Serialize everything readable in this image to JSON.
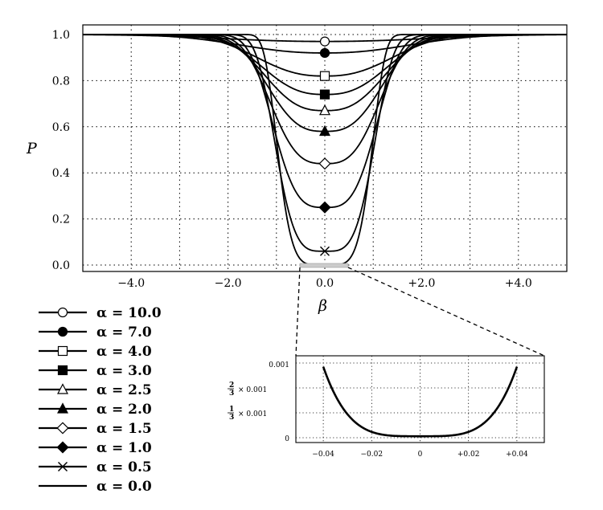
{
  "chart_data": [
    {
      "type": "line",
      "title": "",
      "xlabel": "β",
      "ylabel": "P",
      "xlim": [
        -5.0,
        5.0
      ],
      "ylim": [
        0.0,
        1.0
      ],
      "x_ticks": [
        -4.0,
        -2.0,
        0.0,
        2.0,
        4.0
      ],
      "x_tick_labels": [
        "−4.0",
        "−2.0",
        "0.0",
        "+2.0",
        "+4.0"
      ],
      "y_ticks": [
        0.0,
        0.2,
        0.4,
        0.6,
        0.8,
        1.0
      ],
      "y_tick_labels": [
        "0.0",
        "0.2",
        "0.4",
        "0.6",
        "0.8",
        "1.0"
      ],
      "grid": true,
      "legend_position": "bottom-left",
      "series": [
        {
          "name": "α = 10.0",
          "alpha": 10.0,
          "min_at_zero": 0.97,
          "marker": "circle-open"
        },
        {
          "name": "α = 7.0",
          "alpha": 7.0,
          "min_at_zero": 0.92,
          "marker": "circle-filled"
        },
        {
          "name": "α = 4.0",
          "alpha": 4.0,
          "min_at_zero": 0.82,
          "marker": "square-open"
        },
        {
          "name": "α = 3.0",
          "alpha": 3.0,
          "min_at_zero": 0.74,
          "marker": "square-filled"
        },
        {
          "name": "α = 2.5",
          "alpha": 2.5,
          "min_at_zero": 0.67,
          "marker": "triangle-open"
        },
        {
          "name": "α = 2.0",
          "alpha": 2.0,
          "min_at_zero": 0.58,
          "marker": "triangle-filled"
        },
        {
          "name": "α = 1.5",
          "alpha": 1.5,
          "min_at_zero": 0.44,
          "marker": "diamond-open"
        },
        {
          "name": "α = 1.0",
          "alpha": 1.0,
          "min_at_zero": 0.25,
          "marker": "diamond-filled"
        },
        {
          "name": "α = 0.5",
          "alpha": 0.5,
          "min_at_zero": 0.06,
          "marker": "cross"
        },
        {
          "name": "α = 0.0",
          "alpha": 0.0,
          "min_at_zero": 0.0,
          "marker": "none"
        }
      ]
    },
    {
      "type": "line",
      "title": "",
      "xlim": [
        -0.05,
        0.05
      ],
      "ylim": [
        0.0,
        0.001
      ],
      "x_ticks": [
        -0.04,
        -0.02,
        0.0,
        0.02,
        0.04
      ],
      "x_tick_labels": [
        "−0.04",
        "−0.02",
        "0",
        "+0.02",
        "+0.04"
      ],
      "y_ticks": [
        0.0,
        0.000333,
        0.000667,
        0.001
      ],
      "y_tick_labels": [
        "0",
        "1/3 × 0.001",
        "2/3 × 0.001",
        "0.001"
      ],
      "grid": true,
      "series": [
        {
          "x_range": [
            -0.04,
            0.04
          ],
          "y_at_edges": 0.00095,
          "y_at_zero": 2e-05
        }
      ]
    }
  ]
}
